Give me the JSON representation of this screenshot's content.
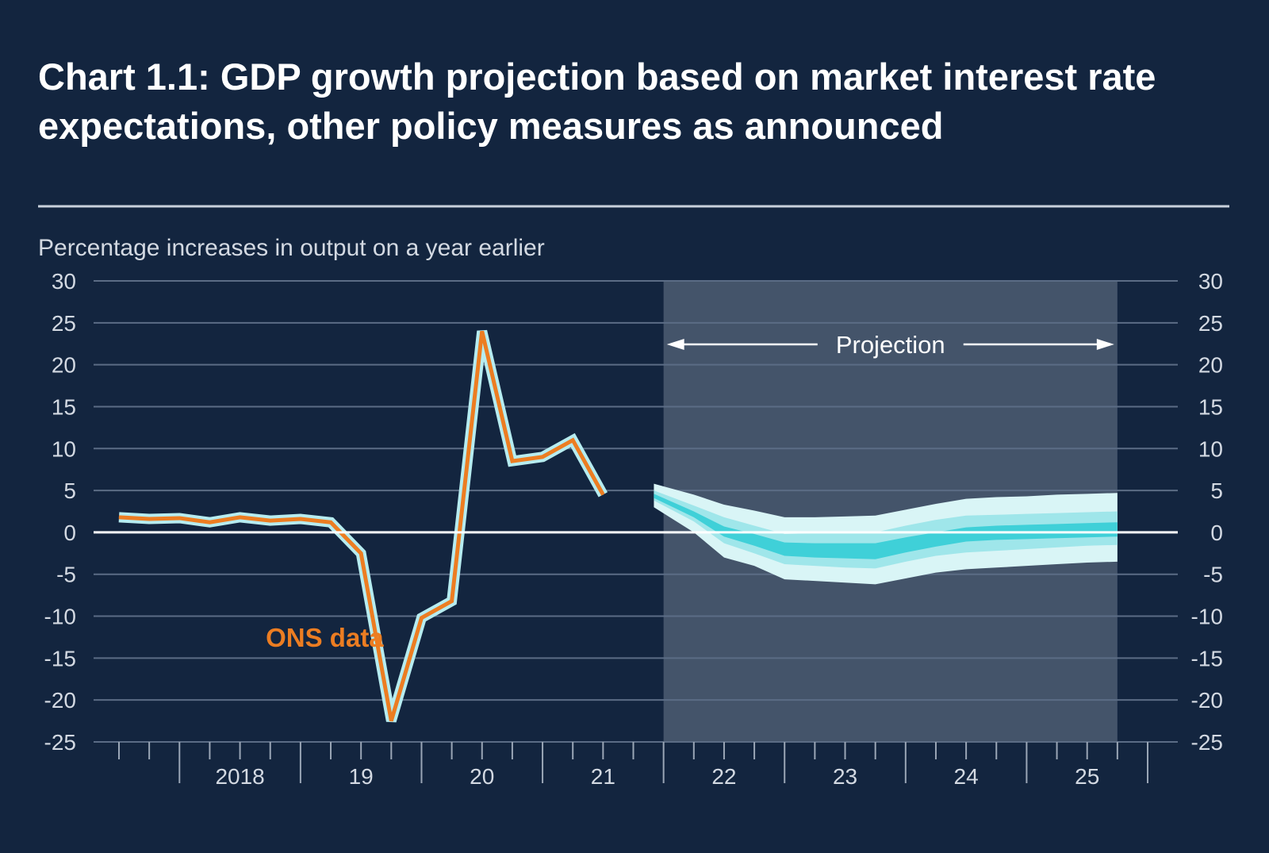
{
  "colors": {
    "background": "#13253f",
    "projection_shade": "#44546a",
    "grid": "#5b6c85",
    "zero_line": "#ffffff",
    "ons_line": "#ec7d22",
    "ons_halo": "#b6ecf0",
    "fan_outer": "#d9f5f6",
    "fan_mid": "#9fe6ea",
    "fan_inner": "#3fd0d8",
    "text": "#d3d9e2"
  },
  "chart_data": {
    "type": "line",
    "title": "Chart 1.1: GDP growth projection based on market interest rate expectations, other policy measures as announced",
    "ylabel": "Percentage increases in output on a year earlier",
    "ylim": [
      -25,
      30
    ],
    "yticks": [
      30,
      25,
      20,
      15,
      10,
      5,
      0,
      -5,
      -10,
      -15,
      -20,
      -25
    ],
    "xlim": [
      2017.5,
      2026.0
    ],
    "xtick_labels": [
      {
        "label": "2018",
        "x": 2018.5
      },
      {
        "label": "19",
        "x": 2019.5
      },
      {
        "label": "20",
        "x": 2020.5
      },
      {
        "label": "21",
        "x": 2021.5
      },
      {
        "label": "22",
        "x": 2022.5
      },
      {
        "label": "23",
        "x": 2023.5
      },
      {
        "label": "24",
        "x": 2024.5
      },
      {
        "label": "25",
        "x": 2025.5
      }
    ],
    "grid": true,
    "projection_start": 2022.0,
    "projection_end": 2025.75,
    "projection_label": "Projection",
    "series": [
      {
        "name": "ONS data",
        "x": [
          2017.5,
          2017.75,
          2018.0,
          2018.25,
          2018.5,
          2018.75,
          2019.0,
          2019.25,
          2019.5,
          2019.75,
          2020.0,
          2020.25,
          2020.5,
          2020.75,
          2021.0,
          2021.25,
          2021.5,
          2021.75,
          2022.0
        ],
        "values": [
          1.8,
          1.6,
          1.7,
          1.2,
          1.8,
          1.4,
          1.6,
          1.2,
          -2.5,
          -22.5,
          -10.2,
          -8.2,
          24.0,
          8.5,
          9.0,
          11.0,
          4.5,
          null,
          null
        ]
      }
    ],
    "fan_chart": {
      "x": [
        2021.92,
        2022.25,
        2022.5,
        2022.75,
        2023.0,
        2023.25,
        2023.5,
        2023.75,
        2024.0,
        2024.25,
        2024.5,
        2024.75,
        2025.0,
        2025.25,
        2025.5,
        2025.75
      ],
      "outer_upper": [
        5.8,
        4.5,
        3.3,
        2.6,
        1.8,
        1.8,
        1.9,
        2.0,
        2.7,
        3.4,
        4.0,
        4.2,
        4.3,
        4.5,
        4.6,
        4.7
      ],
      "outer_lower": [
        3.0,
        0.0,
        -3.0,
        -4.0,
        -5.6,
        -5.8,
        -6.0,
        -6.2,
        -5.5,
        -4.8,
        -4.4,
        -4.2,
        -4.0,
        -3.8,
        -3.6,
        -3.5
      ],
      "mid_upper": [
        5.0,
        3.2,
        1.8,
        0.8,
        -0.2,
        -0.1,
        0.0,
        0.0,
        0.8,
        1.5,
        2.0,
        2.1,
        2.2,
        2.3,
        2.4,
        2.5
      ],
      "mid_lower": [
        3.8,
        1.3,
        -1.3,
        -2.5,
        -3.8,
        -4.0,
        -4.2,
        -4.3,
        -3.5,
        -2.8,
        -2.4,
        -2.2,
        -2.0,
        -1.8,
        -1.6,
        -1.5
      ],
      "inner_upper": [
        4.6,
        2.5,
        0.7,
        -0.2,
        -1.2,
        -1.3,
        -1.3,
        -1.3,
        -0.6,
        0.0,
        0.6,
        0.8,
        0.9,
        1.0,
        1.1,
        1.2
      ],
      "inner_lower": [
        4.1,
        1.8,
        -0.5,
        -1.6,
        -2.8,
        -3.0,
        -3.1,
        -3.2,
        -2.4,
        -1.7,
        -1.1,
        -0.9,
        -0.8,
        -0.7,
        -0.6,
        -0.5
      ]
    },
    "annotations": [
      {
        "text": "ONS data",
        "x": 2019.2,
        "y": -12.5
      }
    ]
  }
}
